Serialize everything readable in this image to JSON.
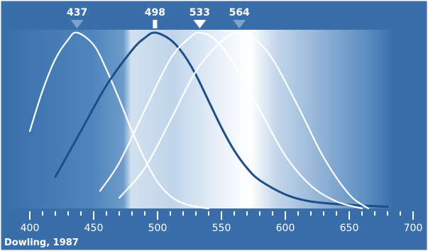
{
  "chart_data": {
    "type": "line",
    "title": "",
    "xlabel": "",
    "ylabel": "",
    "xlim": [
      400,
      700
    ],
    "x_ticks": [
      400,
      450,
      500,
      550,
      600,
      650,
      700
    ],
    "series": [
      {
        "peak": 437,
        "color": "#ffffff",
        "x": [
          400,
          410,
          420,
          430,
          437,
          450,
          460,
          470,
          480,
          490,
          500,
          510,
          520,
          530,
          540
        ],
        "y": [
          0.44,
          0.67,
          0.85,
          0.96,
          1.0,
          0.93,
          0.79,
          0.62,
          0.44,
          0.28,
          0.15,
          0.07,
          0.03,
          0.01,
          0.0
        ]
      },
      {
        "peak": 498,
        "color": "#1e4e87",
        "x": [
          420,
          440,
          460,
          480,
          490,
          498,
          510,
          520,
          530,
          540,
          550,
          560,
          570,
          580,
          600,
          620,
          650,
          680
        ],
        "y": [
          0.18,
          0.44,
          0.7,
          0.9,
          0.97,
          1.0,
          0.96,
          0.88,
          0.76,
          0.61,
          0.46,
          0.33,
          0.23,
          0.16,
          0.08,
          0.04,
          0.02,
          0.01
        ]
      },
      {
        "peak": 533,
        "color": "#ffffff",
        "x": [
          455,
          470,
          490,
          510,
          525,
          533,
          545,
          560,
          580,
          600,
          620,
          640,
          660
        ],
        "y": [
          0.1,
          0.26,
          0.56,
          0.85,
          0.97,
          1.0,
          0.96,
          0.82,
          0.56,
          0.3,
          0.13,
          0.04,
          0.0
        ]
      },
      {
        "peak": 564,
        "color": "#ffffff",
        "x": [
          470,
          490,
          510,
          530,
          550,
          564,
          575,
          590,
          610,
          630,
          650,
          665
        ],
        "y": [
          0.06,
          0.23,
          0.5,
          0.78,
          0.95,
          1.0,
          0.97,
          0.85,
          0.58,
          0.29,
          0.08,
          0.0
        ]
      }
    ],
    "peak_labels": [
      "437",
      "498",
      "533",
      "564"
    ],
    "credit": "Dowling, 1987"
  }
}
